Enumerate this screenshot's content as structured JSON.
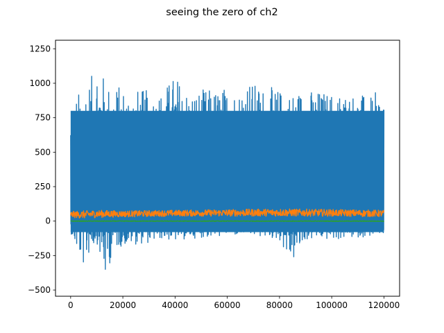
{
  "chart_data": {
    "type": "line",
    "title": "seeing the zero of ch2",
    "xlabel": "",
    "ylabel": "",
    "xlim": [
      -5800,
      126000
    ],
    "ylim": [
      -545,
      1312
    ],
    "x_ticks": [
      0,
      20000,
      40000,
      60000,
      80000,
      100000,
      120000
    ],
    "x_tick_labels": [
      "0",
      "20000",
      "40000",
      "60000",
      "80000",
      "100000",
      "120000"
    ],
    "y_ticks": [
      -500,
      -250,
      0,
      250,
      500,
      750,
      1000,
      1250
    ],
    "y_tick_labels": [
      "−500",
      "−250",
      "0",
      "250",
      "500",
      "750",
      "1000",
      "1250"
    ],
    "grid": false,
    "legend": "none",
    "x_range": [
      0,
      120000
    ],
    "series": [
      {
        "color": "#1f77b4",
        "typical_range": [
          -80,
          800
        ],
        "envelope": {
          "x": [
            0,
            2000,
            5000,
            8000,
            10000,
            13500,
            16000,
            20000,
            25000,
            30000,
            35000,
            40000,
            45000,
            50000,
            55000,
            60000,
            65000,
            67000,
            70000,
            75000,
            80000,
            84500,
            86000,
            90000,
            95000,
            100000,
            105000,
            110000,
            115000,
            120000
          ],
          "max": [
            800,
            900,
            1000,
            1050,
            1220,
            1000,
            1000,
            980,
            960,
            950,
            950,
            1070,
            950,
            960,
            960,
            980,
            960,
            1110,
            1000,
            980,
            960,
            940,
            960,
            960,
            950,
            940,
            950,
            930,
            900,
            990
          ],
          "min": [
            -80,
            -200,
            -340,
            -200,
            -150,
            -470,
            -210,
            -180,
            -170,
            -160,
            -130,
            -150,
            -130,
            -120,
            -120,
            -100,
            -110,
            -90,
            -110,
            -120,
            -140,
            -310,
            -280,
            -140,
            -130,
            -140,
            -130,
            -120,
            -110,
            -100
          ]
        }
      },
      {
        "color": "#ff7f0e",
        "typical_range": [
          35,
          75
        ],
        "envelope": {
          "x": [
            0,
            5000,
            10000,
            20000,
            40000,
            60000,
            80000,
            100000,
            120000
          ],
          "max": [
            70,
            75,
            80,
            75,
            80,
            85,
            90,
            85,
            80
          ],
          "min": [
            25,
            20,
            25,
            30,
            35,
            35,
            35,
            35,
            30
          ]
        }
      },
      {
        "color": "#2ca02c",
        "typical_range": [
          -2,
          2
        ],
        "envelope": {
          "x": [
            0,
            120000
          ],
          "max": [
            2,
            2
          ],
          "min": [
            -2,
            -2
          ]
        }
      }
    ]
  }
}
